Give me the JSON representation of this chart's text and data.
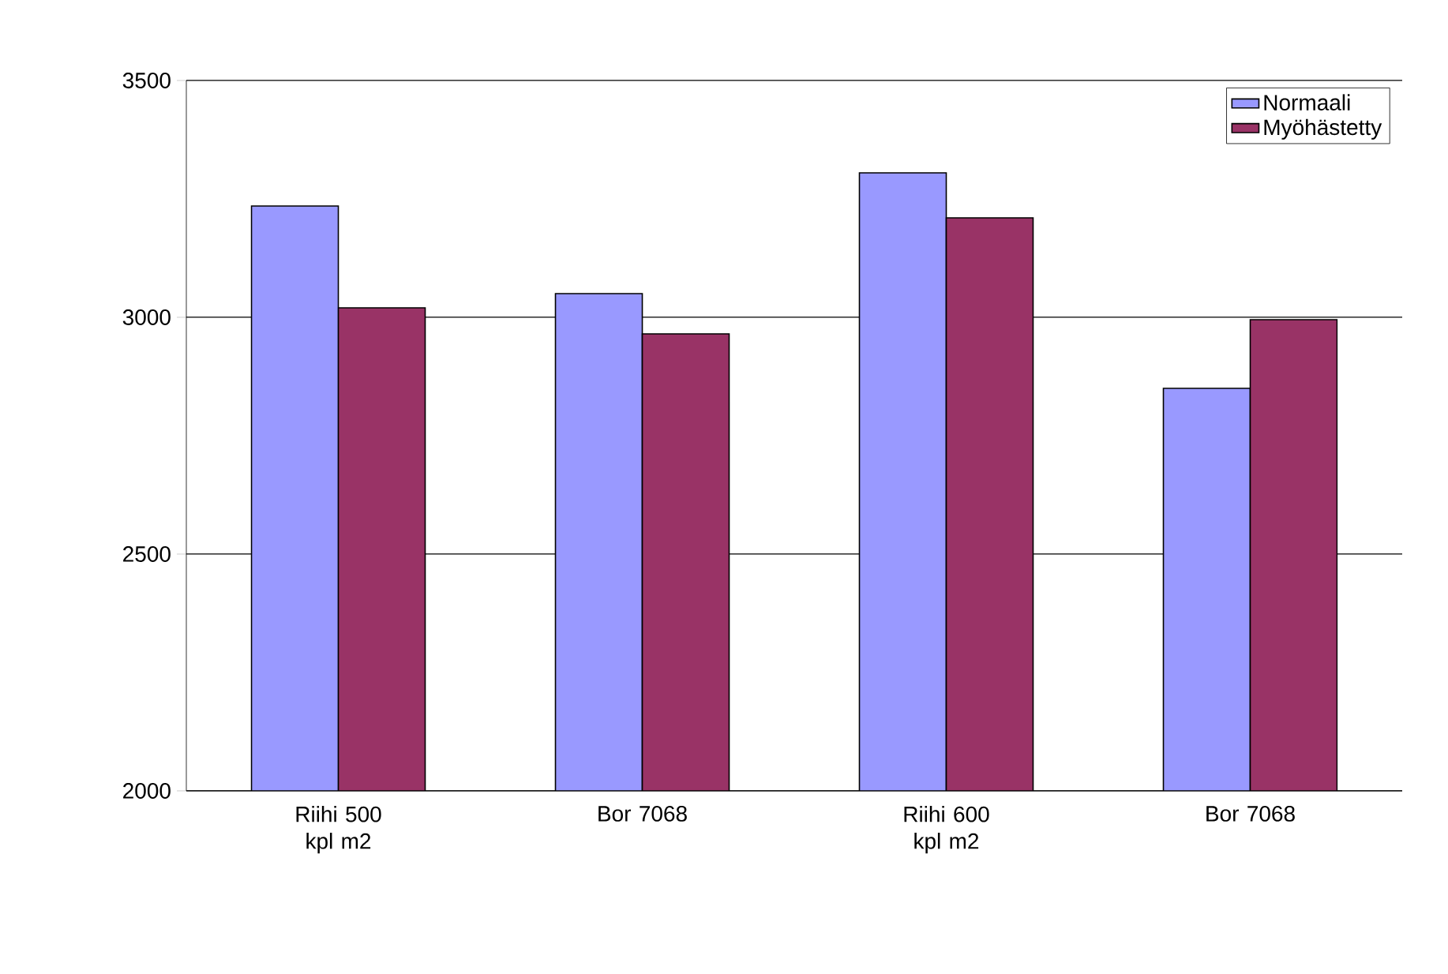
{
  "chart_data": {
    "type": "bar",
    "categories": [
      "Riihi 500 kpl m2",
      "Bor 7068",
      "Riihi 600 kpl m2",
      "Bor 7068"
    ],
    "series": [
      {
        "name": "Normaali",
        "color": "#9999ff",
        "values": [
          3235,
          3050,
          3305,
          2850
        ]
      },
      {
        "name": "Myöhästetty",
        "color": "#993366",
        "values": [
          3020,
          2965,
          3210,
          2995
        ]
      }
    ],
    "ylim": [
      2000,
      3500
    ],
    "yticks": [
      2000,
      2500,
      3000,
      3500
    ],
    "grid": "y",
    "legend": "top right"
  }
}
